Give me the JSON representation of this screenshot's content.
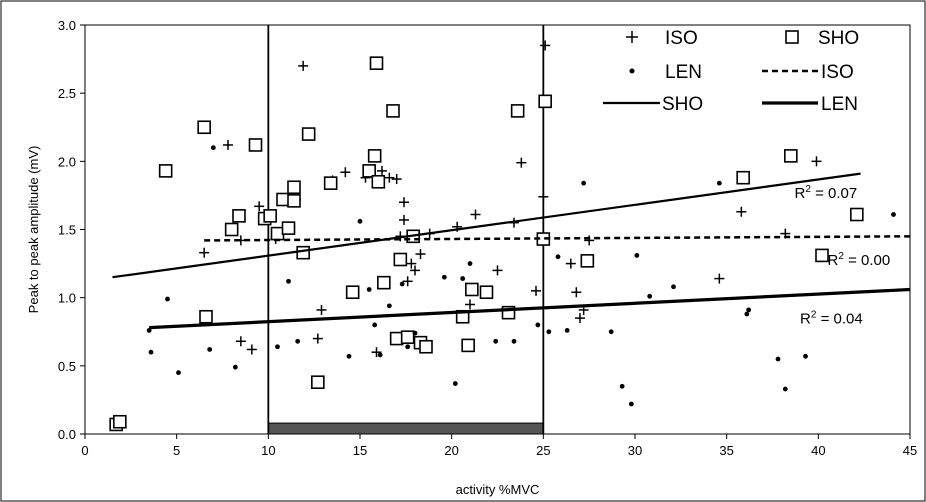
{
  "chart_data": {
    "type": "scatter",
    "xlabel": "activity %MVC",
    "ylabel": "Peak to peak amplitude (mV)",
    "xlim": [
      0,
      45
    ],
    "ylim": [
      0,
      3.0
    ],
    "x_ticks": [
      "0",
      "5",
      "10",
      "15",
      "20",
      "25",
      "30",
      "35",
      "40",
      "45"
    ],
    "y_ticks": [
      "0.0",
      "0.5",
      "1.0",
      "1.5",
      "2.0",
      "2.5",
      "3.0"
    ],
    "x_tick_values": [
      0,
      5,
      10,
      15,
      20,
      25,
      30,
      35,
      40,
      45
    ],
    "y_tick_values": [
      0,
      0.5,
      1.0,
      1.5,
      2.0,
      2.5,
      3.0
    ],
    "grid": false,
    "legend_position": "top-right",
    "vertical_lines_x": [
      10,
      25
    ],
    "highlighted_band": {
      "x": [
        10,
        25
      ],
      "y": [
        0,
        0.08
      ]
    },
    "series": [
      {
        "name": "ISO",
        "marker": "plus",
        "points": [
          [
            6.5,
            1.33
          ],
          [
            7.8,
            2.12
          ],
          [
            8.5,
            1.42
          ],
          [
            8.5,
            0.68
          ],
          [
            9.1,
            0.62
          ],
          [
            9.5,
            1.67
          ],
          [
            9.8,
            1.58
          ],
          [
            10.4,
            1.43
          ],
          [
            11.2,
            1.52
          ],
          [
            11.5,
            1.72
          ],
          [
            11.9,
            2.7
          ],
          [
            12.7,
            0.7
          ],
          [
            12.9,
            0.91
          ],
          [
            13.5,
            1.86
          ],
          [
            14.2,
            1.92
          ],
          [
            15.3,
            1.88
          ],
          [
            15.9,
            0.6
          ],
          [
            16.2,
            1.93
          ],
          [
            16.6,
            1.88
          ],
          [
            17.0,
            1.87
          ],
          [
            17.2,
            1.45
          ],
          [
            17.4,
            1.7
          ],
          [
            17.4,
            1.57
          ],
          [
            17.6,
            1.12
          ],
          [
            17.8,
            1.25
          ],
          [
            18.0,
            1.2
          ],
          [
            18.3,
            1.32
          ],
          [
            18.8,
            1.47
          ],
          [
            20.3,
            1.52
          ],
          [
            21.0,
            0.95
          ],
          [
            21.3,
            1.61
          ],
          [
            22.5,
            1.2
          ],
          [
            23.4,
            1.55
          ],
          [
            23.8,
            1.99
          ],
          [
            24.6,
            1.05
          ],
          [
            25.0,
            1.74
          ],
          [
            25.1,
            2.85
          ],
          [
            26.5,
            1.25
          ],
          [
            26.8,
            1.04
          ],
          [
            27.0,
            0.85
          ],
          [
            27.2,
            0.91
          ],
          [
            27.5,
            1.42
          ],
          [
            34.6,
            1.14
          ],
          [
            35.8,
            1.63
          ],
          [
            38.2,
            1.47
          ],
          [
            39.9,
            2.0
          ]
        ]
      },
      {
        "name": "SHO",
        "marker": "square",
        "points": [
          [
            1.7,
            0.07
          ],
          [
            1.9,
            0.09
          ],
          [
            4.4,
            1.93
          ],
          [
            6.5,
            2.25
          ],
          [
            6.6,
            0.86
          ],
          [
            8.0,
            1.5
          ],
          [
            8.4,
            1.6
          ],
          [
            9.3,
            2.12
          ],
          [
            9.8,
            1.58
          ],
          [
            10.1,
            1.6
          ],
          [
            10.5,
            1.47
          ],
          [
            10.8,
            1.72
          ],
          [
            11.1,
            1.51
          ],
          [
            11.4,
            1.81
          ],
          [
            11.4,
            1.71
          ],
          [
            11.9,
            1.33
          ],
          [
            12.2,
            2.2
          ],
          [
            12.7,
            0.38
          ],
          [
            13.4,
            1.84
          ],
          [
            14.6,
            1.04
          ],
          [
            15.5,
            1.93
          ],
          [
            15.8,
            2.04
          ],
          [
            15.9,
            2.72
          ],
          [
            16.0,
            1.85
          ],
          [
            16.3,
            1.11
          ],
          [
            16.8,
            2.37
          ],
          [
            17.0,
            0.7
          ],
          [
            17.2,
            1.28
          ],
          [
            17.6,
            0.71
          ],
          [
            17.9,
            1.45
          ],
          [
            18.3,
            0.67
          ],
          [
            18.6,
            0.64
          ],
          [
            20.6,
            0.86
          ],
          [
            20.9,
            0.65
          ],
          [
            21.1,
            1.06
          ],
          [
            21.9,
            1.04
          ],
          [
            23.1,
            0.89
          ],
          [
            23.6,
            2.37
          ],
          [
            25.0,
            1.43
          ],
          [
            25.1,
            2.44
          ],
          [
            27.4,
            1.27
          ],
          [
            35.9,
            1.88
          ],
          [
            38.5,
            2.04
          ],
          [
            40.2,
            1.31
          ],
          [
            42.1,
            1.61
          ]
        ]
      },
      {
        "name": "LEN",
        "marker": "dot",
        "points": [
          [
            3.5,
            0.76
          ],
          [
            3.6,
            0.6
          ],
          [
            4.5,
            0.99
          ],
          [
            5.1,
            0.45
          ],
          [
            6.8,
            0.62
          ],
          [
            7.0,
            2.1
          ],
          [
            8.2,
            0.49
          ],
          [
            10.5,
            0.64
          ],
          [
            11.1,
            1.12
          ],
          [
            11.6,
            0.68
          ],
          [
            14.4,
            0.57
          ],
          [
            15.0,
            1.56
          ],
          [
            15.5,
            1.06
          ],
          [
            15.8,
            0.8
          ],
          [
            16.1,
            0.58
          ],
          [
            16.6,
            0.94
          ],
          [
            17.3,
            1.1
          ],
          [
            17.6,
            0.64
          ],
          [
            18.0,
            0.74
          ],
          [
            19.6,
            1.15
          ],
          [
            20.2,
            0.37
          ],
          [
            20.6,
            1.14
          ],
          [
            21.0,
            1.25
          ],
          [
            22.4,
            0.68
          ],
          [
            23.4,
            0.68
          ],
          [
            24.7,
            0.8
          ],
          [
            25.3,
            0.75
          ],
          [
            25.8,
            1.3
          ],
          [
            26.3,
            0.76
          ],
          [
            27.2,
            1.84
          ],
          [
            28.7,
            0.75
          ],
          [
            29.3,
            0.35
          ],
          [
            29.8,
            0.22
          ],
          [
            30.1,
            1.31
          ],
          [
            30.8,
            1.01
          ],
          [
            32.1,
            1.08
          ],
          [
            34.6,
            1.84
          ],
          [
            36.1,
            0.88
          ],
          [
            36.2,
            0.91
          ],
          [
            37.8,
            0.55
          ],
          [
            38.2,
            0.33
          ],
          [
            39.3,
            0.57
          ],
          [
            44.1,
            1.61
          ]
        ]
      }
    ],
    "trendlines": [
      {
        "name": "ISO",
        "style": "dashed",
        "x": [
          6.5,
          45
        ],
        "y": [
          1.42,
          1.45
        ]
      },
      {
        "name": "SHO",
        "style": "thin",
        "x": [
          1.5,
          42.3
        ],
        "y": [
          1.15,
          1.91
        ]
      },
      {
        "name": "LEN",
        "style": "thick",
        "x": [
          3.5,
          45
        ],
        "y": [
          0.78,
          1.06
        ]
      }
    ],
    "r2_labels": [
      {
        "prefix": "R",
        "sup": "2",
        "text": " = 0.07",
        "x": 38.7,
        "y": 1.73
      },
      {
        "prefix": "R",
        "sup": "2",
        "text": " = 0.00",
        "x": 40.5,
        "y": 1.24
      },
      {
        "prefix": "R",
        "sup": "2",
        "text": " = 0.04",
        "x": 39.0,
        "y": 0.81
      }
    ],
    "legend": [
      {
        "label": "ISO",
        "symbol": "plus"
      },
      {
        "label": "SHO",
        "symbol": "square"
      },
      {
        "label": "LEN",
        "symbol": "dot"
      },
      {
        "label": "ISO",
        "symbol": "dashed-line"
      },
      {
        "label": "SHO",
        "symbol": "thin-line"
      },
      {
        "label": "LEN",
        "symbol": "thick-line"
      }
    ]
  }
}
